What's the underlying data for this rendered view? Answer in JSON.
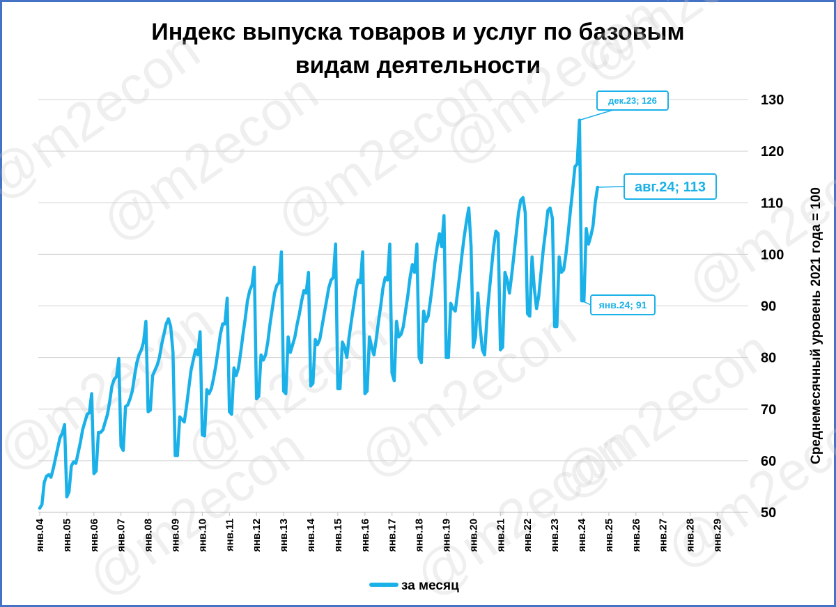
{
  "chart_data": {
    "type": "line",
    "title_lines": [
      "Индекс выпуска товаров и услуг по базовым",
      "видам деятельности"
    ],
    "ylabel": "Среднемесячный уровень 2021 года  =  100",
    "ylim": [
      50,
      130
    ],
    "yticks": [
      50,
      60,
      70,
      80,
      90,
      100,
      110,
      120,
      130
    ],
    "xtick_labels": [
      "янв.04",
      "янв.05",
      "янв.06",
      "янв.07",
      "янв.08",
      "янв.09",
      "янв.10",
      "янв.11",
      "янв.12",
      "янв.13",
      "янв.14",
      "янв.15",
      "янв.16",
      "янв.17",
      "янв.18",
      "янв.19",
      "янв.20",
      "янв.21",
      "янв.22",
      "янв.23",
      "янв.24",
      "янв.25",
      "янв.26",
      "янв.27",
      "янв.28",
      "янв.29"
    ],
    "x_start": "2004-01",
    "series": [
      {
        "name": "за месяц",
        "color": "#1ab0e8",
        "values": [
          50.8,
          51.5,
          55.8,
          57.0,
          57.3,
          56.8,
          58.5,
          60.5,
          62.5,
          64.5,
          65.3,
          67.0,
          53.0,
          54.0,
          59.0,
          59.8,
          59.5,
          61.5,
          63.5,
          66.0,
          67.5,
          69.0,
          69.3,
          73.0,
          57.5,
          58.0,
          65.5,
          65.5,
          66.0,
          67.5,
          69.0,
          71.5,
          74.5,
          75.8,
          76.3,
          79.8,
          62.8,
          62.0,
          70.5,
          70.8,
          72.0,
          73.5,
          76.5,
          79.0,
          80.5,
          81.5,
          83.0,
          87.0,
          69.5,
          69.8,
          76.5,
          77.5,
          78.5,
          80.0,
          82.5,
          84.5,
          86.5,
          87.5,
          86.0,
          81.0,
          61.0,
          61.0,
          68.5,
          68.0,
          67.5,
          70.5,
          74.0,
          77.5,
          79.5,
          81.5,
          80.5,
          85.0,
          65.0,
          64.8,
          73.8,
          73.0,
          74.0,
          76.0,
          78.5,
          81.5,
          84.5,
          86.5,
          86.5,
          91.5,
          69.5,
          69.0,
          78.0,
          76.5,
          78.0,
          81.0,
          84.5,
          87.5,
          91.0,
          93.0,
          94.0,
          97.5,
          72.0,
          72.5,
          80.5,
          79.5,
          80.5,
          83.0,
          86.5,
          89.5,
          92.5,
          94.0,
          94.5,
          100.5,
          73.5,
          73.0,
          84.0,
          81.0,
          82.5,
          84.0,
          86.5,
          88.5,
          91.0,
          93.0,
          92.5,
          96.5,
          74.5,
          75.0,
          83.5,
          82.5,
          83.5,
          86.0,
          88.5,
          91.0,
          93.5,
          95.0,
          95.5,
          102.0,
          74.0,
          74.0,
          83.0,
          82.0,
          80.0,
          84.0,
          87.0,
          90.0,
          93.0,
          95.0,
          94.5,
          100.5,
          73.0,
          73.5,
          84.0,
          82.0,
          80.5,
          83.5,
          87.0,
          90.0,
          93.5,
          95.5,
          95.0,
          102.0,
          77.0,
          75.5,
          87.0,
          84.0,
          84.5,
          86.0,
          89.0,
          92.0,
          95.5,
          98.0,
          96.5,
          102.0,
          80.0,
          79.0,
          89.0,
          87.0,
          88.0,
          91.0,
          94.5,
          98.5,
          101.5,
          104.0,
          101.5,
          107.5,
          80.0,
          80.0,
          90.5,
          89.5,
          89.0,
          92.5,
          96.0,
          100.0,
          103.5,
          106.5,
          109.0,
          101.5,
          82.0,
          84.0,
          92.5,
          86.0,
          81.5,
          80.5,
          87.5,
          92.5,
          97.0,
          101.5,
          104.5,
          104.0,
          81.5,
          82.0,
          96.5,
          95.0,
          92.5,
          96.0,
          100.0,
          104.0,
          108.0,
          110.5,
          111.0,
          108.0,
          88.5,
          88.0,
          99.5,
          93.5,
          89.5,
          92.0,
          96.5,
          101.0,
          104.5,
          108.5,
          109.0,
          107.0,
          86.0,
          86.0,
          99.5,
          96.5,
          97.0,
          100.0,
          104.0,
          108.5,
          112.5,
          117.0,
          117.5,
          126.0,
          91.0,
          91.0,
          105.0,
          102.0,
          103.5,
          105.5,
          110.0,
          113.0
        ]
      }
    ],
    "annotations": [
      {
        "label": "дек.23; 126"
      },
      {
        "label": "авг.24; 113"
      },
      {
        "label": "янв.24; 91"
      }
    ],
    "legend": {
      "position": "bottom",
      "label": "за месяц"
    },
    "grid": "horizontal",
    "watermark": "@m2econ"
  }
}
